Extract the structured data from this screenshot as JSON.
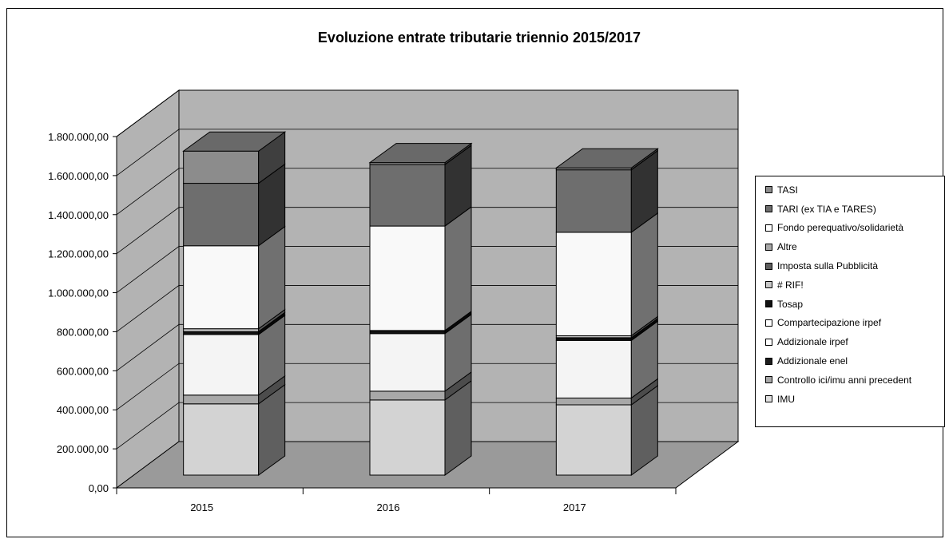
{
  "chart_data": {
    "type": "bar",
    "stacked": true,
    "three_d": true,
    "title": "Evoluzione entrate tributarie triennio 2015/2017",
    "xlabel": "",
    "ylabel": "",
    "categories": [
      "2015",
      "2016",
      "2017"
    ],
    "ylim": [
      0,
      1800000
    ],
    "ytick_values": [
      0,
      200000,
      400000,
      600000,
      800000,
      1000000,
      1200000,
      1400000,
      1600000,
      1800000
    ],
    "ytick_labels": [
      "0,00",
      "200.000,00",
      "400.000,00",
      "600.000,00",
      "800.000,00",
      "1.000.000,00",
      "1.200.000,00",
      "1.400.000,00",
      "1.600.000,00",
      "1.800.000,00"
    ],
    "grid": true,
    "legend_position": "right",
    "series": [
      {
        "name": "IMU",
        "values": [
          365000,
          385000,
          360000
        ],
        "color": "#d3d3d3"
      },
      {
        "name": "Controllo ici/imu anni precedent",
        "values": [
          45000,
          45000,
          35000
        ],
        "color": "#a8a8a8"
      },
      {
        "name": "Addizionale enel",
        "values": [
          0,
          0,
          0
        ],
        "color": "#1c1c1c"
      },
      {
        "name": "Addizionale irpef",
        "values": [
          310000,
          295000,
          295000
        ],
        "color": "#f4f4f4"
      },
      {
        "name": "Compartecipazione irpef",
        "values": [
          0,
          0,
          0
        ],
        "color": "#ffffff"
      },
      {
        "name": "Tosap",
        "values": [
          15000,
          16000,
          14000
        ],
        "color": "#111111"
      },
      {
        "name": "# RIF!",
        "values": [
          0,
          0,
          0
        ],
        "color": "#c8c8c8"
      },
      {
        "name": "Imposta sulla Pubblicità",
        "values": [
          0,
          0,
          0
        ],
        "color": "#5e5e5e"
      },
      {
        "name": "Altre",
        "values": [
          15000,
          0,
          10000
        ],
        "color": "#bdbdbd"
      },
      {
        "name": "Fondo perequativo/solidarietà",
        "values": [
          425000,
          535000,
          530000
        ],
        "color": "#f9f9f9"
      },
      {
        "name": "TARI (ex TIA e TARES)",
        "values": [
          320000,
          315000,
          320000
        ],
        "color": "#6e6e6e"
      },
      {
        "name": "TASI",
        "values": [
          165000,
          10000,
          10000
        ],
        "color": "#8c8c8c"
      }
    ],
    "legend_order": [
      "TASI",
      "TARI (ex TIA e TARES)",
      "Fondo perequativo/solidarietà",
      "Altre",
      "Imposta sulla Pubblicità",
      "# RIF!",
      "Tosap",
      "Compartecipazione irpef",
      "Addizionale irpef",
      "Addizionale enel",
      "Controllo ici/imu anni precedent",
      "IMU"
    ],
    "legend_colors": [
      "#8c8c8c",
      "#6e6e6e",
      "#ffffff",
      "#a8a8a8",
      "#5e5e5e",
      "#c8c8c8",
      "#111111",
      "#ffffff",
      "#ffffff",
      "#1c1c1c",
      "#a8a8a8",
      "#e0e0e0"
    ],
    "colors": {
      "wall": "#b3b3b3",
      "floor": "#9a9a9a",
      "grid": "#000000"
    }
  }
}
